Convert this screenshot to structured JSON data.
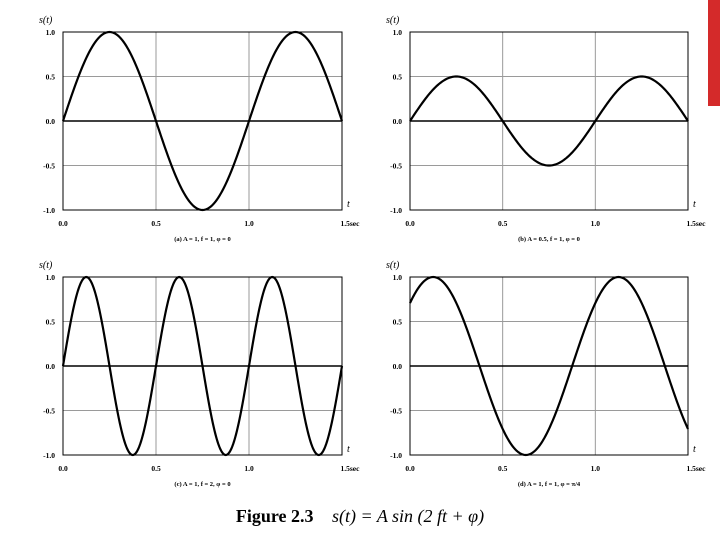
{
  "caption": {
    "figure": "Figure 2.3",
    "equation": "s(t) = A  sin (2  ft + φ)"
  },
  "colors": {
    "accent_bar": "#d42a2a",
    "line": "#000000"
  },
  "chart_data": [
    {
      "type": "line",
      "ylabel": "s(t)",
      "xlabel": "t",
      "subtitle": "(a) A = 1, f = 1, φ = 0",
      "xlim": [
        0,
        1.5
      ],
      "ylim": [
        -1,
        1
      ],
      "xticks": [
        "0.0",
        "0.5",
        "1.0",
        "1.5sec"
      ],
      "yticks": [
        "1.0",
        "0.5",
        "0.0",
        "-0.5",
        "-1.0"
      ],
      "grid": true,
      "amplitude": 1,
      "frequency": 1,
      "phase": 0
    },
    {
      "type": "line",
      "ylabel": "s(t)",
      "xlabel": "t",
      "subtitle": "(b) A = 0.5, f = 1, φ = 0",
      "xlim": [
        0,
        1.5
      ],
      "ylim": [
        -1,
        1
      ],
      "xticks": [
        "0.0",
        "0.5",
        "1.0",
        "1.5sec"
      ],
      "yticks": [
        "1.0",
        "0.5",
        "0.0",
        "-0.5",
        "-1.0"
      ],
      "grid": true,
      "amplitude": 0.5,
      "frequency": 1,
      "phase": 0
    },
    {
      "type": "line",
      "ylabel": "s(t)",
      "xlabel": "t",
      "subtitle": "(c) A = 1, f = 2, φ = 0",
      "xlim": [
        0,
        1.5
      ],
      "ylim": [
        -1,
        1
      ],
      "xticks": [
        "0.0",
        "0.5",
        "1.0",
        "1.5sec"
      ],
      "yticks": [
        "1.0",
        "0.5",
        "0.0",
        "-0.5",
        "-1.0"
      ],
      "grid": true,
      "amplitude": 1,
      "frequency": 2,
      "phase": 0
    },
    {
      "type": "line",
      "ylabel": "s(t)",
      "xlabel": "t",
      "subtitle": "(d) A = 1, f = 1, φ = π/4",
      "xlim": [
        0,
        1.5
      ],
      "ylim": [
        -1,
        1
      ],
      "xticks": [
        "0.0",
        "0.5",
        "1.0",
        "1.5sec"
      ],
      "yticks": [
        "1.0",
        "0.5",
        "0.0",
        "-0.5",
        "-1.0"
      ],
      "grid": true,
      "amplitude": 1,
      "frequency": 1,
      "phase": 0.7854
    }
  ]
}
